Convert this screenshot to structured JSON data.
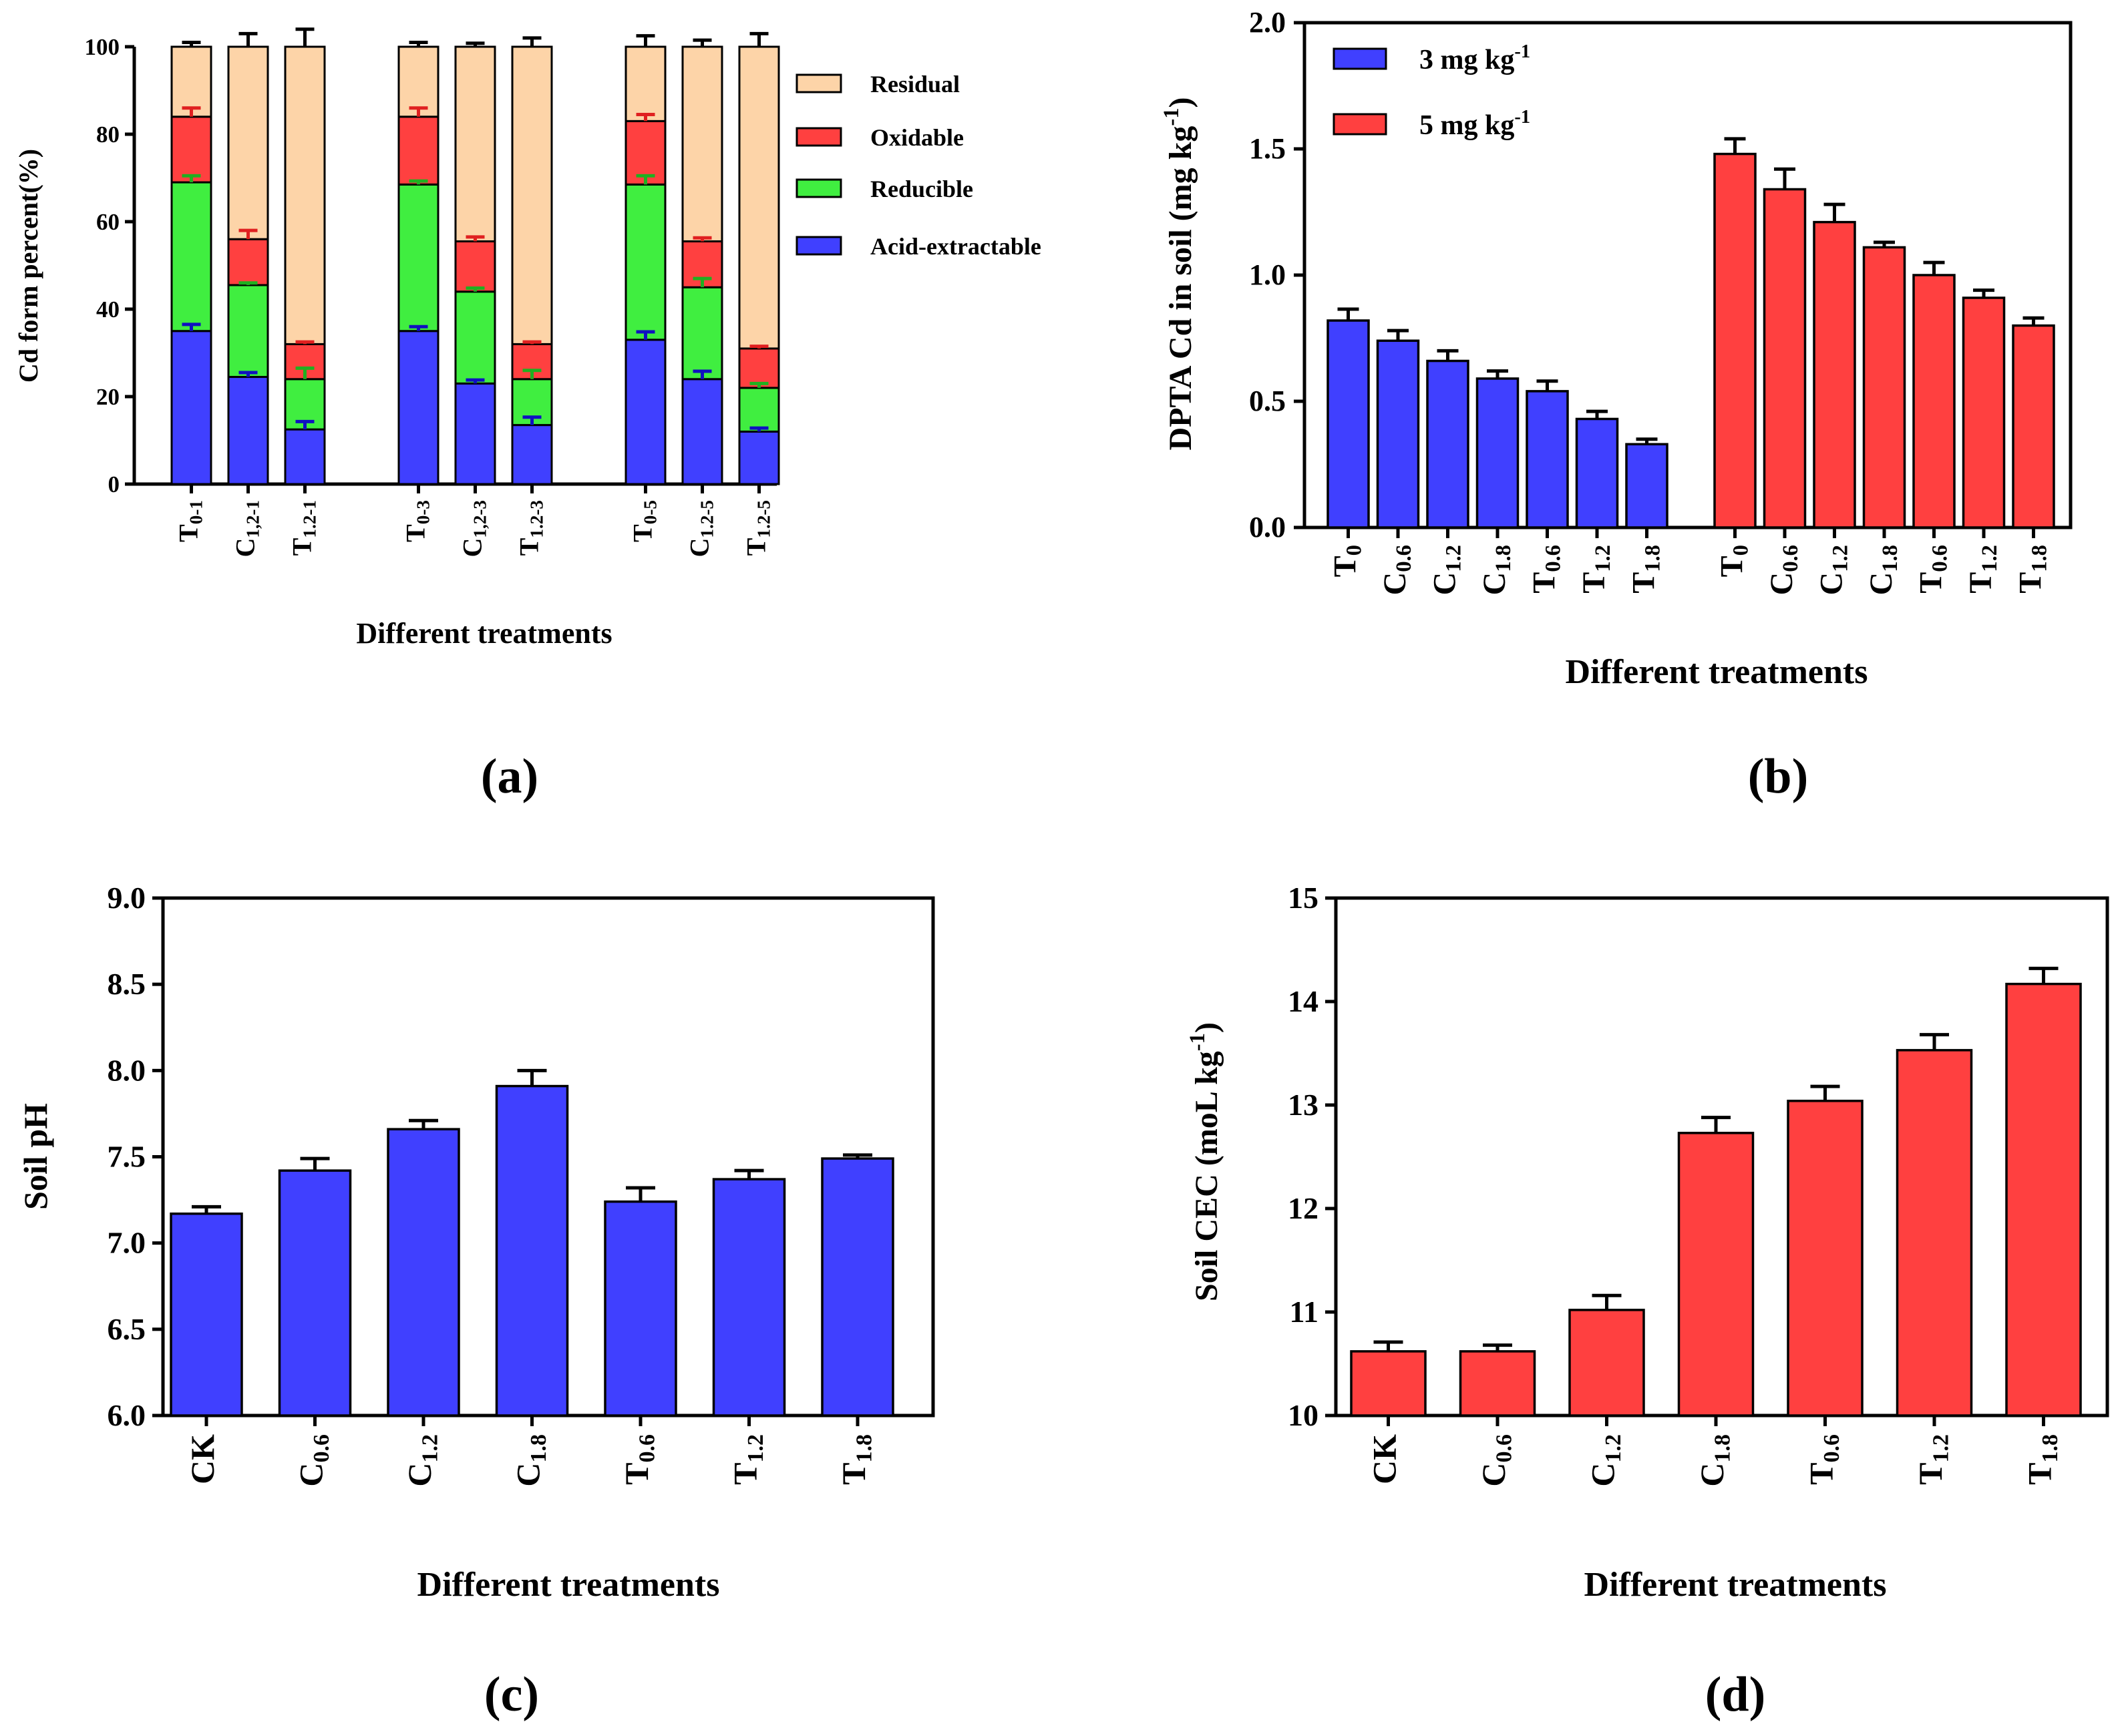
{
  "chart_data": [
    {
      "panel": "a",
      "panel_label": "(a)",
      "type": "bar",
      "stacked": true,
      "title": "",
      "ylabel": "Cd  form percent(%)",
      "xlabel": "Different treatments",
      "ylim": [
        0,
        100
      ],
      "yticks": [
        0,
        20,
        40,
        60,
        80,
        100
      ],
      "legend_position": "right",
      "groups": [
        [
          {
            "main": "T",
            "sub": "0-1"
          },
          {
            "main": "C",
            "sub": "1,2-1"
          },
          {
            "main": "T",
            "sub": "1.2-1"
          }
        ],
        [
          {
            "main": "T",
            "sub": "0-3"
          },
          {
            "main": "C",
            "sub": "1,2-3"
          },
          {
            "main": "T",
            "sub": "1.2-3"
          }
        ],
        [
          {
            "main": "T",
            "sub": "0-5"
          },
          {
            "main": "C",
            "sub": "1.2-5"
          },
          {
            "main": "T",
            "sub": "1.2-5"
          }
        ]
      ],
      "series": [
        {
          "name": "Acid-extractable",
          "color": "#4040ff",
          "err_color": "#1010c0",
          "values": [
            35,
            24.5,
            12.5,
            35,
            23,
            13.5,
            33,
            24,
            12
          ],
          "errors": [
            1.5,
            1,
            1.8,
            1,
            0.8,
            1.8,
            1.8,
            1.8,
            0.8
          ]
        },
        {
          "name": "Reducible",
          "color": "#40ee40",
          "err_color": "#20b020",
          "values": [
            34,
            21,
            11.5,
            33.5,
            21,
            10.5,
            35.5,
            21,
            10
          ],
          "errors": [
            1.5,
            0.5,
            2.5,
            0.8,
            0.8,
            2,
            2,
            2,
            1
          ]
        },
        {
          "name": "Oxidable",
          "color": "#ff4040",
          "err_color": "#e02020",
          "values": [
            15,
            10.5,
            8,
            15.5,
            11.5,
            8,
            14.5,
            10.5,
            9
          ],
          "errors": [
            2,
            2,
            0.5,
            2,
            1,
            0.5,
            1.5,
            0.8,
            0.5
          ]
        },
        {
          "name": "Residual",
          "color": "#fdd4a8",
          "err_color": "#000000",
          "values": [
            16,
            44,
            68,
            16,
            44.5,
            68,
            17,
            44.5,
            69
          ],
          "errors": [
            1,
            3,
            4,
            1,
            0.8,
            2,
            2.5,
            1.5,
            3
          ]
        }
      ]
    },
    {
      "panel": "b",
      "panel_label": "(b)",
      "type": "bar",
      "title": "",
      "ylabel": "DPTA  Cd  in soil (mg kg",
      "ylabel_sup": "-1",
      "ylabel_end": ")",
      "xlabel": "Different treatments",
      "ylim": [
        0,
        2.0
      ],
      "yticks": [
        "0.0",
        "0.5",
        "1.0",
        "1.5",
        "2.0"
      ],
      "legend_position": "top-left",
      "categories": [
        {
          "main": "T",
          "sub": "0"
        },
        {
          "main": "C",
          "sub": "0.6"
        },
        {
          "main": "C",
          "sub": "1.2"
        },
        {
          "main": "C",
          "sub": "1.8"
        },
        {
          "main": "T",
          "sub": "0.6"
        },
        {
          "main": "T",
          "sub": "1.2"
        },
        {
          "main": "T",
          "sub": "1.8"
        }
      ],
      "series": [
        {
          "name": "3 mg kg",
          "name_sup": "-1",
          "color": "#4040ff",
          "values": [
            0.82,
            0.74,
            0.66,
            0.59,
            0.54,
            0.43,
            0.33
          ],
          "errors": [
            0.045,
            0.04,
            0.04,
            0.03,
            0.04,
            0.03,
            0.02
          ]
        },
        {
          "name": "5 mg kg",
          "name_sup": "-1",
          "color": "#ff4040",
          "values": [
            1.48,
            1.34,
            1.21,
            1.11,
            1.0,
            0.91,
            0.8
          ],
          "errors": [
            0.06,
            0.08,
            0.07,
            0.02,
            0.05,
            0.03,
            0.03
          ]
        }
      ]
    },
    {
      "panel": "c",
      "panel_label": "(c)",
      "type": "bar",
      "title": "",
      "ylabel": "Soil pH",
      "xlabel": "Different treatments",
      "ylim": [
        6.0,
        9.0
      ],
      "yticks": [
        "6.0",
        "6.5",
        "7.0",
        "7.5",
        "8.0",
        "8.5",
        "9.0"
      ],
      "color": "#4040ff",
      "categories": [
        {
          "main": "CK",
          "sub": ""
        },
        {
          "main": "C",
          "sub": "0.6"
        },
        {
          "main": "C",
          "sub": "1.2"
        },
        {
          "main": "C",
          "sub": "1.8"
        },
        {
          "main": "T",
          "sub": "0.6"
        },
        {
          "main": "T",
          "sub": "1.2"
        },
        {
          "main": "T",
          "sub": "1.8"
        }
      ],
      "values": [
        7.17,
        7.42,
        7.66,
        7.91,
        7.24,
        7.37,
        7.49
      ],
      "errors": [
        0.04,
        0.07,
        0.05,
        0.09,
        0.08,
        0.05,
        0.02
      ]
    },
    {
      "panel": "d",
      "panel_label": "(d)",
      "type": "bar",
      "title": "",
      "ylabel": "Soil CEC (moL kg",
      "ylabel_sup": "-1",
      "ylabel_end": ")",
      "xlabel": "Different treatments",
      "ylim": [
        10,
        15
      ],
      "yticks": [
        "10",
        "11",
        "12",
        "13",
        "14",
        "15"
      ],
      "color": "#ff4040",
      "categories": [
        {
          "main": "CK",
          "sub": ""
        },
        {
          "main": "C",
          "sub": "0.6"
        },
        {
          "main": "C",
          "sub": "1.2"
        },
        {
          "main": "C",
          "sub": "1.8"
        },
        {
          "main": "T",
          "sub": "0.6"
        },
        {
          "main": "T",
          "sub": "1.2"
        },
        {
          "main": "T",
          "sub": "1.8"
        }
      ],
      "values": [
        10.62,
        10.62,
        11.02,
        12.73,
        13.04,
        13.53,
        14.17
      ],
      "errors": [
        0.09,
        0.06,
        0.14,
        0.15,
        0.14,
        0.15,
        0.15
      ]
    }
  ]
}
